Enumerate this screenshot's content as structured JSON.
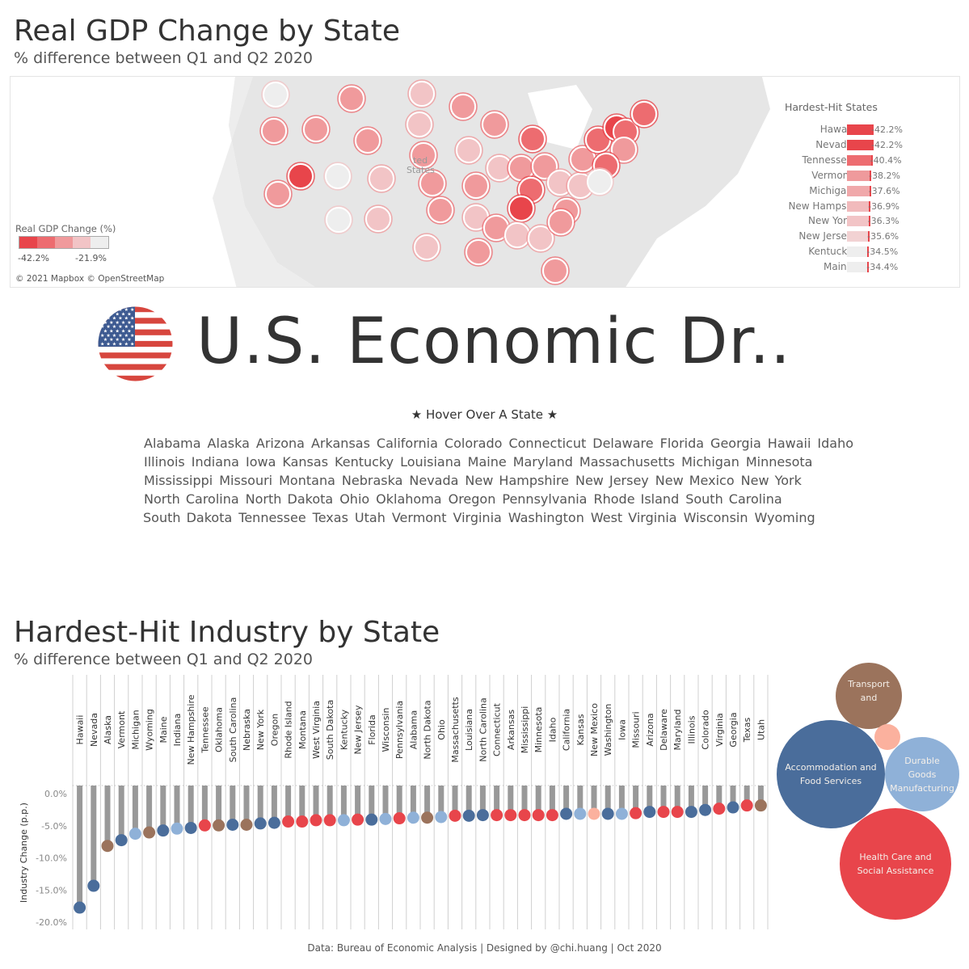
{
  "map_section": {
    "title": "Real GDP Change by State",
    "subtitle": "% difference between Q1 and Q2 2020",
    "map_label": "ted\nStates",
    "legend": {
      "title": "Real GDP Change (%)",
      "min_label": "-42.2%",
      "max_label": "-21.9%",
      "colors": [
        "#e8454b",
        "#ed6c70",
        "#f09a9c",
        "#f2c4c6",
        "#eeeeee"
      ]
    },
    "attribution": "© 2021 Mapbox © OpenStreetMap",
    "hardest_hit": {
      "title": "Hardest-Hit States",
      "items": [
        {
          "state": "Hawaii",
          "value": -42.2,
          "label": "-42.2%"
        },
        {
          "state": "Nevada",
          "value": -42.2,
          "label": "-42.2%"
        },
        {
          "state": "Tennessee",
          "value": -40.4,
          "label": "-40.4%"
        },
        {
          "state": "Vermont",
          "value": -38.2,
          "label": "-38.2%"
        },
        {
          "state": "Michigan",
          "value": -37.6,
          "label": "-37.6%"
        },
        {
          "state": "New Hamps..",
          "value": -36.9,
          "label": "-36.9%"
        },
        {
          "state": "New York",
          "value": -36.3,
          "label": "-36.3%"
        },
        {
          "state": "New Jersey",
          "value": -35.6,
          "label": "-35.6%"
        },
        {
          "state": "Kentucky",
          "value": -34.5,
          "label": "-34.5%"
        },
        {
          "state": "Maine",
          "value": -34.4,
          "label": "-34.4%"
        }
      ]
    }
  },
  "banner": {
    "title": "U.S. Economic Dr..",
    "flag_icon": "us-flag-icon",
    "hover_prompt": "★ Hover Over A State ★"
  },
  "state_lines": [
    [
      "Alabama",
      "Alaska",
      "Arizona",
      "Arkansas",
      "California",
      "Colorado",
      "Connecticut",
      "Delaware",
      "Florida",
      "Georgia",
      "Hawaii",
      "Idaho"
    ],
    [
      "Illinois",
      "Indiana",
      "Iowa",
      "Kansas",
      "Kentucky",
      "Louisiana",
      "Maine",
      "Maryland",
      "Massachusetts",
      "Michigan",
      "Minnesota"
    ],
    [
      "Mississippi",
      "Missouri",
      "Montana",
      "Nebraska",
      "Nevada",
      "New Hampshire",
      "New Jersey",
      "New Mexico",
      "New York"
    ],
    [
      "North Carolina",
      "North Dakota",
      "Ohio",
      "Oklahoma",
      "Oregon",
      "Pennsylvania",
      "Rhode Island",
      "South Carolina"
    ],
    [
      "South Dakota",
      "Tennessee",
      "Texas",
      "Utah",
      "Vermont",
      "Virginia",
      "Washington",
      "West Virginia",
      "Wisconsin",
      "Wyoming"
    ]
  ],
  "industry_section": {
    "title": "Hardest-Hit Industry by State",
    "subtitle": "% difference between Q1 and Q2 2020"
  },
  "chart_data": [
    {
      "type": "lollipop",
      "ylabel": "Industry Change (p.p.)",
      "ylim": [
        -20,
        0
      ],
      "yticks": [
        {
          "v": 0,
          "label": "0.0%"
        },
        {
          "v": -5,
          "label": "-5.0%"
        },
        {
          "v": -10,
          "label": "-10.0%"
        },
        {
          "v": -15,
          "label": "-15.0%"
        },
        {
          "v": -20,
          "label": "-20.0%"
        }
      ],
      "industries": [
        {
          "name": "Accommodation and Food Services",
          "color": "#4a6d9b"
        },
        {
          "name": "Durable Goods Manufacturing",
          "color": "#8fb1d8"
        },
        {
          "name": "Health Care and Social Assistance",
          "color": "#e8454b"
        },
        {
          "name": "Transport and",
          "color": "#9b735c"
        },
        {
          "name": "",
          "color": "#fbb19e"
        }
      ],
      "points": [
        {
          "state": "Hawaii",
          "value": -19.0,
          "industry": 0
        },
        {
          "state": "Nevada",
          "value": -15.6,
          "industry": 0
        },
        {
          "state": "Alaska",
          "value": -9.4,
          "industry": 3
        },
        {
          "state": "Vermont",
          "value": -8.5,
          "industry": 0
        },
        {
          "state": "Michigan",
          "value": -7.5,
          "industry": 1
        },
        {
          "state": "Wyoming",
          "value": -7.3,
          "industry": 3
        },
        {
          "state": "Maine",
          "value": -7.0,
          "industry": 0
        },
        {
          "state": "Indiana",
          "value": -6.7,
          "industry": 1
        },
        {
          "state": "New Hampshire",
          "value": -6.6,
          "industry": 0
        },
        {
          "state": "Tennessee",
          "value": -6.2,
          "industry": 2
        },
        {
          "state": "Oklahoma",
          "value": -6.2,
          "industry": 3
        },
        {
          "state": "South Carolina",
          "value": -6.1,
          "industry": 0
        },
        {
          "state": "Nebraska",
          "value": -6.1,
          "industry": 3
        },
        {
          "state": "New York",
          "value": -5.9,
          "industry": 0
        },
        {
          "state": "Oregon",
          "value": -5.8,
          "industry": 0
        },
        {
          "state": "Rhode Island",
          "value": -5.6,
          "industry": 2
        },
        {
          "state": "Montana",
          "value": -5.6,
          "industry": 2
        },
        {
          "state": "West Virginia",
          "value": -5.4,
          "industry": 2
        },
        {
          "state": "South Dakota",
          "value": -5.4,
          "industry": 2
        },
        {
          "state": "Kentucky",
          "value": -5.4,
          "industry": 1
        },
        {
          "state": "New Jersey",
          "value": -5.3,
          "industry": 2
        },
        {
          "state": "Florida",
          "value": -5.3,
          "industry": 0
        },
        {
          "state": "Wisconsin",
          "value": -5.2,
          "industry": 1
        },
        {
          "state": "Pennsylvania",
          "value": -5.1,
          "industry": 2
        },
        {
          "state": "Alabama",
          "value": -5.0,
          "industry": 1
        },
        {
          "state": "North Dakota",
          "value": -5.0,
          "industry": 3
        },
        {
          "state": "Ohio",
          "value": -4.9,
          "industry": 1
        },
        {
          "state": "Massachusetts",
          "value": -4.7,
          "industry": 2
        },
        {
          "state": "Louisiana",
          "value": -4.7,
          "industry": 0
        },
        {
          "state": "North Carolina",
          "value": -4.6,
          "industry": 0
        },
        {
          "state": "Connecticut",
          "value": -4.6,
          "industry": 2
        },
        {
          "state": "Arkansas",
          "value": -4.6,
          "industry": 2
        },
        {
          "state": "Mississippi",
          "value": -4.6,
          "industry": 2
        },
        {
          "state": "Minnesota",
          "value": -4.6,
          "industry": 2
        },
        {
          "state": "Idaho",
          "value": -4.6,
          "industry": 2
        },
        {
          "state": "California",
          "value": -4.4,
          "industry": 0
        },
        {
          "state": "Kansas",
          "value": -4.4,
          "industry": 1
        },
        {
          "state": "New Mexico",
          "value": -4.4,
          "industry": 4
        },
        {
          "state": "Washington",
          "value": -4.4,
          "industry": 0
        },
        {
          "state": "Iowa",
          "value": -4.4,
          "industry": 1
        },
        {
          "state": "Missouri",
          "value": -4.3,
          "industry": 2
        },
        {
          "state": "Arizona",
          "value": -4.1,
          "industry": 0
        },
        {
          "state": "Delaware",
          "value": -4.1,
          "industry": 2
        },
        {
          "state": "Maryland",
          "value": -4.1,
          "industry": 2
        },
        {
          "state": "Illinois",
          "value": -4.1,
          "industry": 0
        },
        {
          "state": "Colorado",
          "value": -3.8,
          "industry": 0
        },
        {
          "state": "Virginia",
          "value": -3.6,
          "industry": 2
        },
        {
          "state": "Georgia",
          "value": -3.4,
          "industry": 0
        },
        {
          "state": "Texas",
          "value": -3.1,
          "industry": 2
        },
        {
          "state": "Utah",
          "value": -3.1,
          "industry": 3
        }
      ]
    }
  ],
  "bubble_chart": {
    "bubbles": [
      {
        "label": "Transport and",
        "industry": 3
      },
      {
        "label": "",
        "industry": 4
      },
      {
        "label": "Accommodation and Food Services",
        "industry": 0
      },
      {
        "label": "Durable Goods Manufacturing",
        "industry": 1
      },
      {
        "label": "Health Care and Social Assistance",
        "industry": 2
      }
    ]
  },
  "footer": "Data: Bureau of Economic Analysis | Designed by @chi.huang | Oct 2020"
}
